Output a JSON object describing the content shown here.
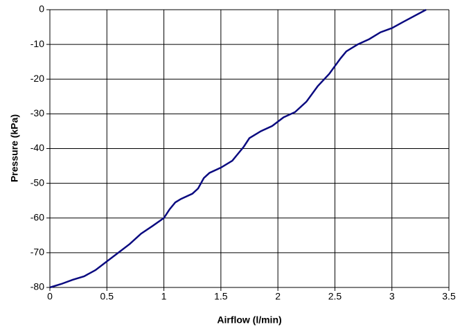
{
  "chart_data": {
    "type": "line",
    "x_label": "Airflow (l/min)",
    "y_label": "Pressure (kPa)",
    "series": [
      {
        "name": "Pressure",
        "color": "#0a0a80",
        "x": [
          0,
          0.1,
          0.2,
          0.3,
          0.4,
          0.5,
          0.6,
          0.7,
          0.8,
          0.9,
          1.0,
          1.05,
          1.1,
          1.15,
          1.25,
          1.3,
          1.35,
          1.4,
          1.5,
          1.6,
          1.65,
          1.7,
          1.75,
          1.85,
          1.95,
          2.05,
          2.15,
          2.25,
          2.35,
          2.45,
          2.55,
          2.6,
          2.7,
          2.8,
          2.9,
          3.0,
          3.1,
          3.3
        ],
        "values": [
          -80,
          -79,
          -77.8,
          -76.8,
          -75,
          -72.5,
          -70,
          -67.5,
          -64.5,
          -62.3,
          -60,
          -57.5,
          -55.5,
          -54.5,
          -53,
          -51.5,
          -48.5,
          -47,
          -45.5,
          -43.5,
          -41.5,
          -39.5,
          -37,
          -35,
          -33.5,
          -31,
          -29.5,
          -26.5,
          -22,
          -18.5,
          -14,
          -12,
          -10,
          -8.5,
          -6.5,
          -5.3,
          -3.5,
          0
        ]
      }
    ],
    "xlim": [
      0,
      3.5
    ],
    "xticks": [
      0,
      0.5,
      1,
      1.5,
      2,
      2.5,
      3,
      3.5
    ],
    "ylim": [
      -80,
      0
    ],
    "yticks": [
      0,
      -10,
      -20,
      -30,
      -40,
      -50,
      -60,
      -70,
      -80
    ],
    "grid": true
  }
}
